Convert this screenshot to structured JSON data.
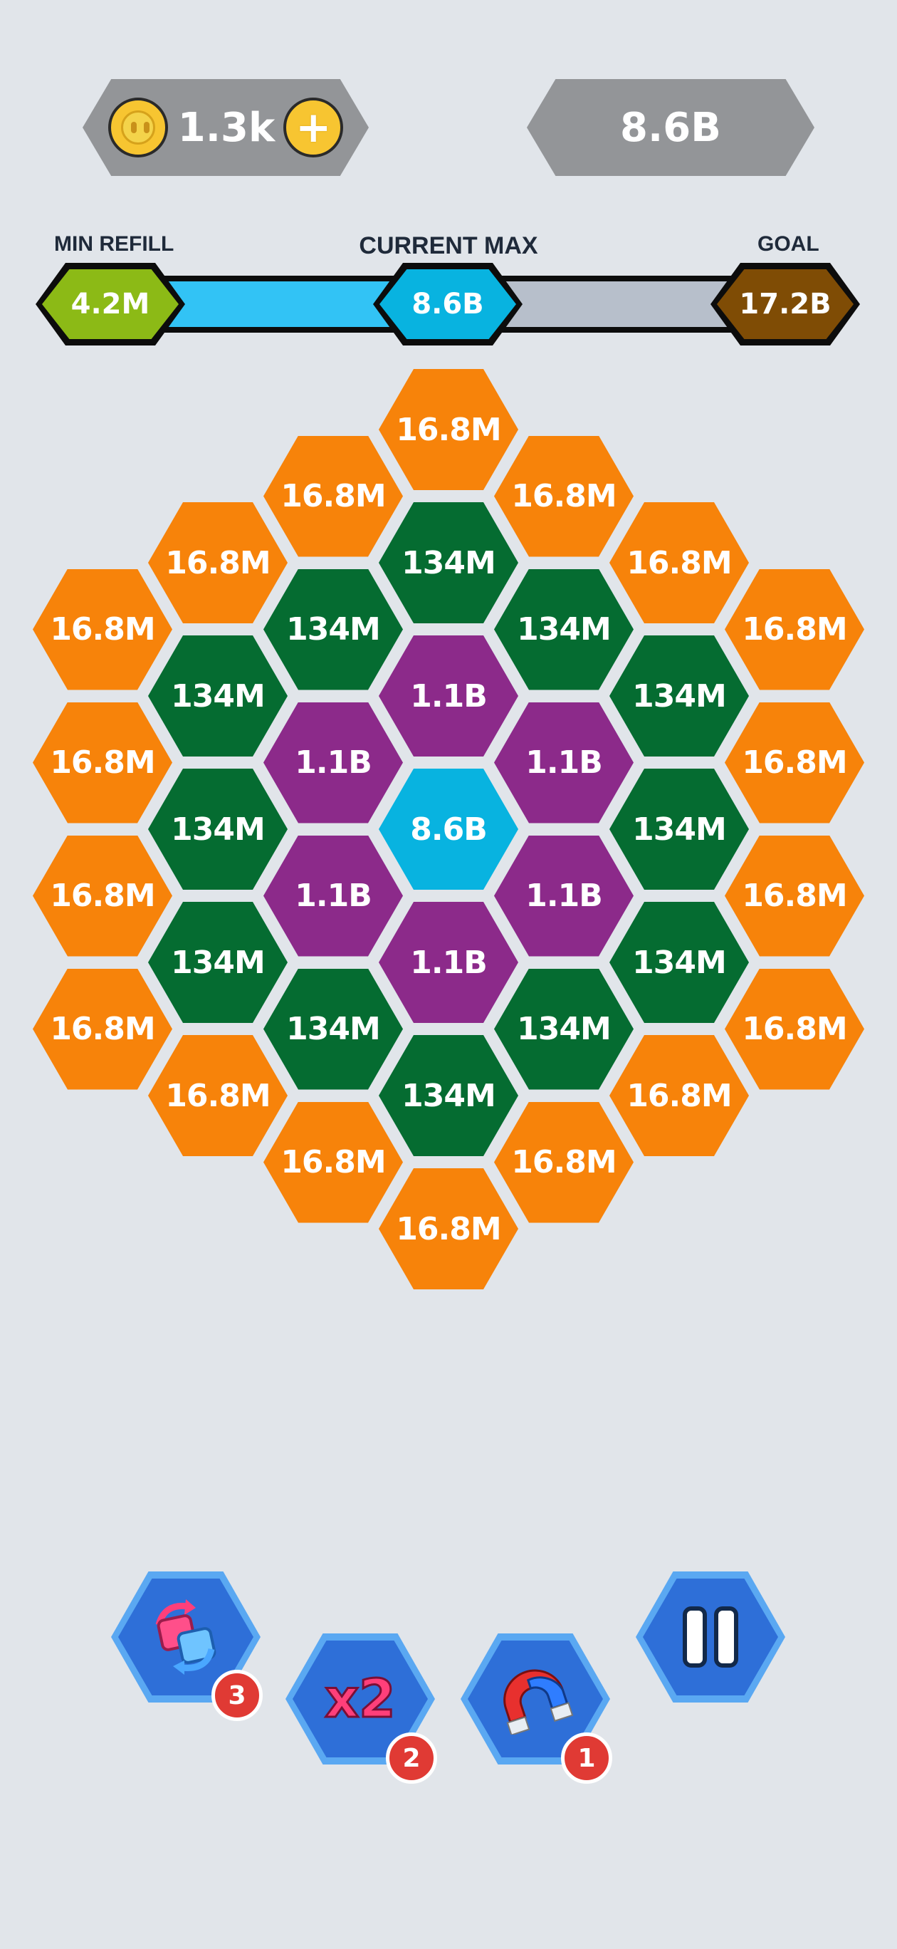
{
  "header": {
    "coins": "1.3k",
    "score": "8.6B"
  },
  "progress": {
    "min_refill_label": "MIN REFILL",
    "min_refill_value": "4.2M",
    "current_max_label": "CURRENT MAX",
    "current_max_value": "8.6B",
    "goal_label": "GOAL",
    "goal_value": "17.2B",
    "fill_fraction": 0.5
  },
  "colors": {
    "orange": "#f7830a",
    "green": "#056c31",
    "purple": "#8c2a8a",
    "blue": "#08b3e0",
    "min_refill": "#8cba16",
    "goal": "#7f4c05"
  },
  "board": {
    "cells": [
      {
        "q": 0,
        "r": -4,
        "label": "16.8M",
        "color": "orange"
      },
      {
        "q": -1,
        "r": -3,
        "label": "16.8M",
        "color": "orange"
      },
      {
        "q": 1,
        "r": -4,
        "label": "16.8M",
        "color": "orange"
      },
      {
        "q": -2,
        "r": -2,
        "label": "16.8M",
        "color": "orange"
      },
      {
        "q": 0,
        "r": -3,
        "label": "134M",
        "color": "green"
      },
      {
        "q": 2,
        "r": -4,
        "label": "16.8M",
        "color": "orange"
      },
      {
        "q": -3,
        "r": -1,
        "label": "16.8M",
        "color": "orange"
      },
      {
        "q": -1,
        "r": -2,
        "label": "134M",
        "color": "green"
      },
      {
        "q": 1,
        "r": -3,
        "label": "134M",
        "color": "green"
      },
      {
        "q": 3,
        "r": -4,
        "label": "16.8M",
        "color": "orange"
      },
      {
        "q": -2,
        "r": -1,
        "label": "134M",
        "color": "green"
      },
      {
        "q": 0,
        "r": -2,
        "label": "1.1B",
        "color": "purple"
      },
      {
        "q": 2,
        "r": -3,
        "label": "134M",
        "color": "green"
      },
      {
        "q": -3,
        "r": 0,
        "label": "16.8M",
        "color": "orange"
      },
      {
        "q": -1,
        "r": -1,
        "label": "1.1B",
        "color": "purple"
      },
      {
        "q": 1,
        "r": -2,
        "label": "1.1B",
        "color": "purple"
      },
      {
        "q": 3,
        "r": -3,
        "label": "16.8M",
        "color": "orange"
      },
      {
        "q": -2,
        "r": 0,
        "label": "134M",
        "color": "green"
      },
      {
        "q": 0,
        "r": -1,
        "label": "8.6B",
        "color": "blue"
      },
      {
        "q": 2,
        "r": -2,
        "label": "134M",
        "color": "green"
      },
      {
        "q": -3,
        "r": 1,
        "label": "16.8M",
        "color": "orange"
      },
      {
        "q": -1,
        "r": 0,
        "label": "1.1B",
        "color": "purple"
      },
      {
        "q": 1,
        "r": -1,
        "label": "1.1B",
        "color": "purple"
      },
      {
        "q": 3,
        "r": -2,
        "label": "16.8M",
        "color": "orange"
      },
      {
        "q": -2,
        "r": 1,
        "label": "134M",
        "color": "green"
      },
      {
        "q": 0,
        "r": 0,
        "label": "1.1B",
        "color": "purple"
      },
      {
        "q": 2,
        "r": -1,
        "label": "134M",
        "color": "green"
      },
      {
        "q": -3,
        "r": 2,
        "label": "16.8M",
        "color": "orange"
      },
      {
        "q": -1,
        "r": 1,
        "label": "134M",
        "color": "green"
      },
      {
        "q": 1,
        "r": 0,
        "label": "134M",
        "color": "green"
      },
      {
        "q": 3,
        "r": -1,
        "label": "16.8M",
        "color": "orange"
      },
      {
        "q": -2,
        "r": 2,
        "label": "16.8M",
        "color": "orange"
      },
      {
        "q": 0,
        "r": 1,
        "label": "134M",
        "color": "green"
      },
      {
        "q": 2,
        "r": 0,
        "label": "16.8M",
        "color": "orange"
      },
      {
        "q": -1,
        "r": 2,
        "label": "16.8M",
        "color": "orange"
      },
      {
        "q": 1,
        "r": 1,
        "label": "16.8M",
        "color": "orange"
      },
      {
        "q": 0,
        "r": 2,
        "label": "16.8M",
        "color": "orange"
      }
    ]
  },
  "toolbar": {
    "swap_count": "3",
    "double_label": "x2",
    "double_count": "2",
    "magnet_count": "1"
  }
}
